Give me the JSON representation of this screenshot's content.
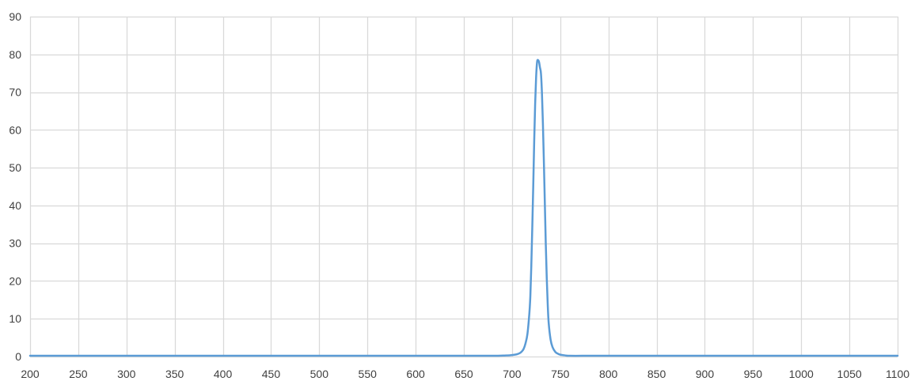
{
  "chart_data": {
    "type": "line",
    "title": "",
    "xlabel": "",
    "ylabel": "",
    "xlim": [
      200,
      1100
    ],
    "ylim": [
      0,
      90
    ],
    "x_ticks": [
      200,
      250,
      300,
      350,
      400,
      450,
      500,
      550,
      600,
      650,
      700,
      750,
      800,
      850,
      900,
      950,
      1000,
      1050,
      1100
    ],
    "y_ticks": [
      0,
      10,
      20,
      30,
      40,
      50,
      60,
      70,
      80,
      90
    ],
    "x_tick_labels": [
      "200",
      "250",
      "300",
      "350",
      "400",
      "450",
      "500",
      "550",
      "600",
      "650",
      "700",
      "750",
      "800",
      "850",
      "900",
      "950",
      "1000",
      "1050",
      "1100"
    ],
    "y_tick_labels": [
      "0",
      "10",
      "20",
      "30",
      "40",
      "50",
      "60",
      "70",
      "80",
      "90"
    ],
    "grid": true,
    "legend": "none",
    "colors": {
      "series": "#5b9bd5",
      "grid": "#d9d9d9",
      "text": "#404040"
    },
    "series": [
      {
        "x": [
          200,
          300,
          400,
          500,
          600,
          650,
          680,
          695,
          700,
          705,
          708,
          710,
          712,
          714,
          716,
          718,
          719,
          720,
          721,
          722,
          723,
          724,
          725,
          726,
          727,
          728,
          729,
          730,
          731,
          732,
          733,
          734,
          735,
          736,
          737,
          738,
          740,
          742,
          745,
          748,
          750,
          755,
          760,
          780,
          800,
          900,
          1000,
          1100
        ],
        "values": [
          0.2,
          0.2,
          0.2,
          0.2,
          0.2,
          0.2,
          0.2,
          0.3,
          0.4,
          0.6,
          0.9,
          1.3,
          2.0,
          3.5,
          6.0,
          11.5,
          16.0,
          24.0,
          34.0,
          45.0,
          57.0,
          67.0,
          74.0,
          78.0,
          78.5,
          78.0,
          76.5,
          75.0,
          70.0,
          62.0,
          52.0,
          41.0,
          30.0,
          21.0,
          14.0,
          9.0,
          4.5,
          2.5,
          1.2,
          0.7,
          0.5,
          0.3,
          0.2,
          0.2,
          0.2,
          0.2,
          0.2,
          0.2
        ]
      }
    ]
  }
}
